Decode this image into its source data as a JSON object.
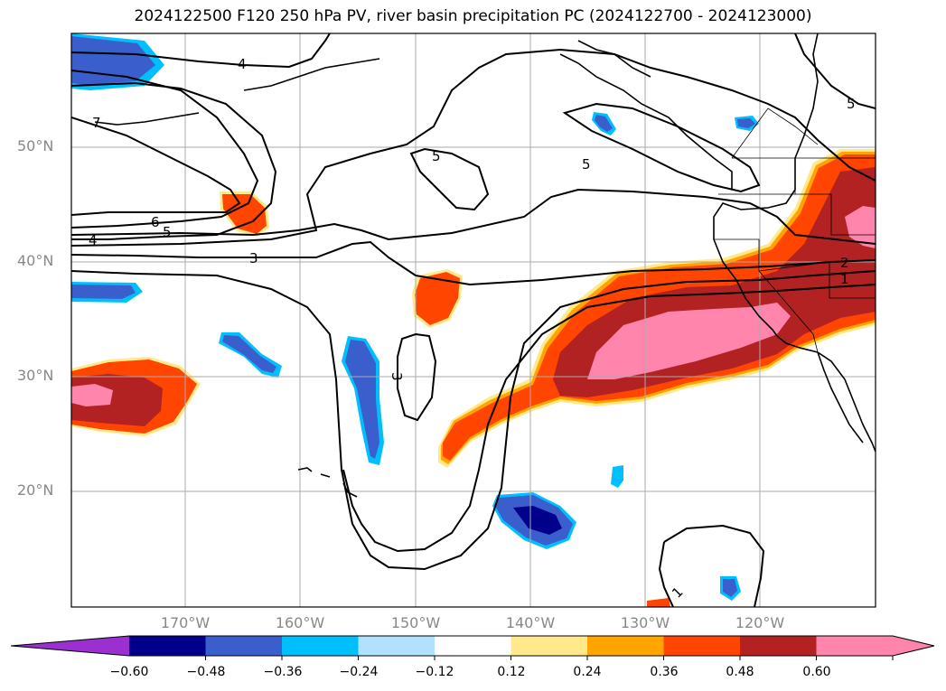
{
  "title": "2024122500 F120 250 hPa PV, river basin precipitation PC (2024122700 - 2024123000)",
  "lat_labels": [
    "50°N",
    "40°N",
    "30°N",
    "20°N"
  ],
  "lon_labels": [
    "170°W",
    "160°W",
    "150°W",
    "140°W",
    "130°W",
    "120°W"
  ],
  "colorbar": {
    "ticks": [
      "−0.60",
      "−0.48",
      "−0.36",
      "−0.24",
      "−0.12",
      "0.12",
      "0.24",
      "0.36",
      "0.48",
      "0.60"
    ],
    "colors": [
      "#9b30d0",
      "#00008b",
      "#3a5fcd",
      "#00bfff",
      "#b0e2ff",
      "#ffffff",
      "#ffe98a",
      "#ffa500",
      "#ff4500",
      "#b22222",
      "#ff85ad",
      "#ff85ad"
    ]
  },
  "contour_labels": [
    "4",
    "7",
    "6",
    "5",
    "4",
    "3",
    "5",
    "5",
    "5",
    "3",
    "2",
    "1",
    "1"
  ]
}
